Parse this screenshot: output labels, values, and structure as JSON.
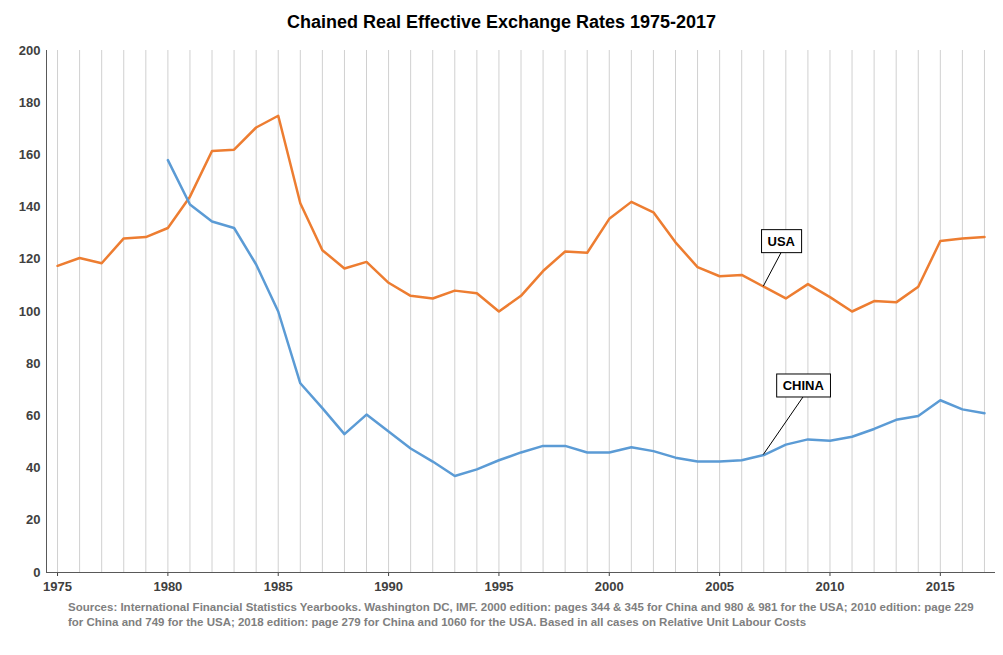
{
  "chart_data": {
    "type": "line",
    "title": "Chained Real Effective Exchange Rates 1975-2017",
    "source": "Sources: International Financial Statistics Yearbooks. Washington DC, IMF. 2000 edition: pages 344 & 345 for China and 980 & 981 for the USA; 2010 edition: page 229 for China and 749 for the USA; 2018 edition: page 279 for China and 1060 for the USA.  Based in all cases on Relative Unit Labour Costs",
    "x": [
      1975,
      1976,
      1977,
      1978,
      1979,
      1980,
      1981,
      1982,
      1983,
      1984,
      1985,
      1986,
      1987,
      1988,
      1989,
      1990,
      1991,
      1992,
      1993,
      1994,
      1995,
      1996,
      1997,
      1998,
      1999,
      2000,
      2001,
      2002,
      2003,
      2004,
      2005,
      2006,
      2007,
      2008,
      2009,
      2010,
      2011,
      2012,
      2013,
      2014,
      2015,
      2016,
      2017
    ],
    "series": [
      {
        "name": "USA",
        "color": "#ed7d31",
        "values": [
          117.5,
          120.5,
          118.5,
          128,
          128.5,
          132,
          144,
          161.5,
          162,
          170.5,
          175,
          141.5,
          123.5,
          116.5,
          119,
          111,
          106,
          105,
          108,
          107,
          100,
          106,
          115.5,
          123,
          122.5,
          135.5,
          142,
          138,
          126.5,
          117,
          113.5,
          114,
          109.5,
          105,
          110.5,
          105.5,
          100,
          104,
          103.5,
          109.5,
          127,
          128,
          128.5
        ]
      },
      {
        "name": "CHINA",
        "color": "#5b9bd5",
        "values": [
          null,
          null,
          null,
          null,
          null,
          158,
          141,
          134.5,
          132,
          118,
          100,
          72.5,
          63,
          53,
          60.5,
          54,
          47.5,
          42.5,
          37,
          39.5,
          43,
          46,
          48.5,
          48.5,
          46,
          46,
          48,
          46.5,
          44,
          42.5,
          42.5,
          43,
          45,
          49,
          51,
          50.5,
          52,
          55,
          58.5,
          60,
          66,
          62.5,
          61
        ]
      }
    ],
    "annotations": [
      {
        "text": "USA",
        "series": "USA",
        "x": 2007
      },
      {
        "text": "CHINA",
        "series": "CHINA",
        "x": 2007
      }
    ],
    "xlim": [
      1974.5,
      2017.5
    ],
    "xticks": [
      1975,
      1980,
      1985,
      1990,
      1995,
      2000,
      2005,
      2010,
      2015
    ],
    "ylim": [
      0,
      200
    ],
    "yticks": [
      0,
      20,
      40,
      60,
      80,
      100,
      120,
      140,
      160,
      180,
      200
    ],
    "grid": "x"
  }
}
